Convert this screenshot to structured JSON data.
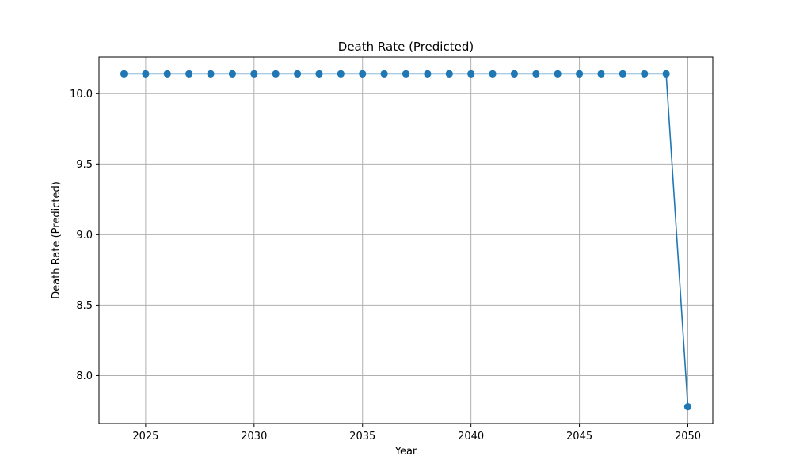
{
  "chart_data": {
    "type": "line",
    "title": "Death Rate (Predicted)",
    "xlabel": "Year",
    "ylabel": "Death Rate (Predicted)",
    "xlim": [
      2022.85,
      2051.15
    ],
    "ylim": [
      7.66,
      10.26
    ],
    "xticks": [
      2025,
      2030,
      2035,
      2040,
      2045,
      2050
    ],
    "yticks": [
      8.0,
      8.5,
      9.0,
      9.5,
      10.0
    ],
    "grid": true,
    "marker": "circle",
    "colors": {
      "series": "#1f77b4",
      "grid": "#b0b0b0",
      "axes": "#000000"
    },
    "series": [
      {
        "x": [
          2024,
          2025,
          2026,
          2027,
          2028,
          2029,
          2030,
          2031,
          2032,
          2033,
          2034,
          2035,
          2036,
          2037,
          2038,
          2039,
          2040,
          2041,
          2042,
          2043,
          2044,
          2045,
          2046,
          2047,
          2048,
          2049,
          2050
        ],
        "y": [
          10.14,
          10.14,
          10.14,
          10.14,
          10.14,
          10.14,
          10.14,
          10.14,
          10.14,
          10.14,
          10.14,
          10.14,
          10.14,
          10.14,
          10.14,
          10.14,
          10.14,
          10.14,
          10.14,
          10.14,
          10.14,
          10.14,
          10.14,
          10.14,
          10.14,
          10.14,
          7.78
        ]
      }
    ]
  }
}
